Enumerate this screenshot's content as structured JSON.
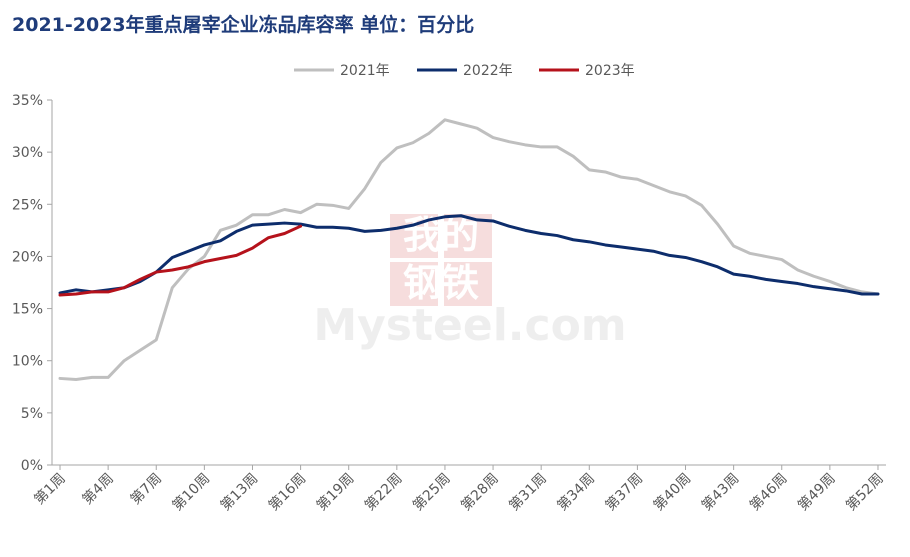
{
  "title": "2021-2023年重点屠宰企业冻品库容率  单位：百分比",
  "watermark": {
    "line1": "我的",
    "line2": "钢铁",
    "brand": "Mysteel.com"
  },
  "chart_data": {
    "type": "line",
    "title": "2021-2023年重点屠宰企业冻品库容率  单位：百分比",
    "xlabel": "",
    "ylabel": "",
    "ylim": [
      0,
      35
    ],
    "yticks": [
      "0%",
      "5%",
      "10%",
      "15%",
      "20%",
      "25%",
      "30%",
      "35%"
    ],
    "x_tick_labels": [
      "第1周",
      "第4周",
      "第7周",
      "第10周",
      "第13周",
      "第16周",
      "第19周",
      "第22周",
      "第25周",
      "第28周",
      "第31周",
      "第34周",
      "第37周",
      "第40周",
      "第43周",
      "第46周",
      "第49周",
      "第52周"
    ],
    "x_tick_weeks": [
      1,
      4,
      7,
      10,
      13,
      16,
      19,
      22,
      25,
      28,
      31,
      34,
      37,
      40,
      43,
      46,
      49,
      52
    ],
    "legend_position": "top-center",
    "grid": false,
    "series": [
      {
        "name": "2021年",
        "color": "#bfbfbf",
        "x": [
          1,
          2,
          3,
          4,
          5,
          6,
          7,
          8,
          9,
          10,
          11,
          12,
          13,
          14,
          15,
          16,
          17,
          18,
          19,
          20,
          21,
          22,
          23,
          24,
          25,
          26,
          27,
          28,
          29,
          30,
          31,
          32,
          33,
          34,
          35,
          36,
          37,
          38,
          39,
          40,
          41,
          42,
          43,
          44,
          45,
          46,
          47,
          48,
          49,
          50,
          51,
          52
        ],
        "values": [
          8.3,
          8.2,
          8.4,
          8.4,
          10.0,
          11.0,
          12.0,
          17.0,
          18.8,
          20.0,
          22.5,
          23.0,
          24.0,
          24.0,
          24.5,
          24.2,
          25.0,
          24.9,
          24.6,
          26.5,
          29.0,
          30.4,
          30.9,
          31.8,
          33.1,
          32.7,
          32.3,
          31.4,
          31.0,
          30.7,
          30.5,
          30.5,
          29.6,
          28.3,
          28.1,
          27.6,
          27.4,
          26.8,
          26.2,
          25.8,
          24.9,
          23.1,
          21.0,
          20.3,
          20.0,
          19.7,
          18.7,
          18.1,
          17.6,
          17.0,
          16.6,
          16.4
        ]
      },
      {
        "name": "2022年",
        "color": "#0d2d6c",
        "x": [
          1,
          2,
          3,
          4,
          5,
          6,
          7,
          8,
          9,
          10,
          11,
          12,
          13,
          14,
          15,
          16,
          17,
          18,
          19,
          20,
          21,
          22,
          23,
          24,
          25,
          26,
          27,
          28,
          29,
          30,
          31,
          32,
          33,
          34,
          35,
          36,
          37,
          38,
          39,
          40,
          41,
          42,
          43,
          44,
          45,
          46,
          47,
          48,
          49,
          50,
          51,
          52
        ],
        "values": [
          16.5,
          16.8,
          16.6,
          16.8,
          17.0,
          17.6,
          18.5,
          19.9,
          20.5,
          21.1,
          21.5,
          22.4,
          23.0,
          23.1,
          23.2,
          23.1,
          22.8,
          22.8,
          22.7,
          22.4,
          22.5,
          22.7,
          23.0,
          23.5,
          23.8,
          23.9,
          23.5,
          23.4,
          22.9,
          22.5,
          22.2,
          22.0,
          21.6,
          21.4,
          21.1,
          20.9,
          20.7,
          20.5,
          20.1,
          19.9,
          19.5,
          19.0,
          18.3,
          18.1,
          17.8,
          17.6,
          17.4,
          17.1,
          16.9,
          16.7,
          16.4,
          16.4
        ]
      },
      {
        "name": "2023年",
        "color": "#b5121b",
        "x": [
          1,
          2,
          3,
          4,
          5,
          6,
          7,
          8,
          9,
          10,
          11,
          12,
          13,
          14,
          15,
          16
        ],
        "values": [
          16.3,
          16.4,
          16.6,
          16.6,
          17.0,
          17.8,
          18.5,
          18.7,
          19.0,
          19.5,
          19.8,
          20.1,
          20.8,
          21.8,
          22.2,
          22.9
        ]
      }
    ]
  }
}
